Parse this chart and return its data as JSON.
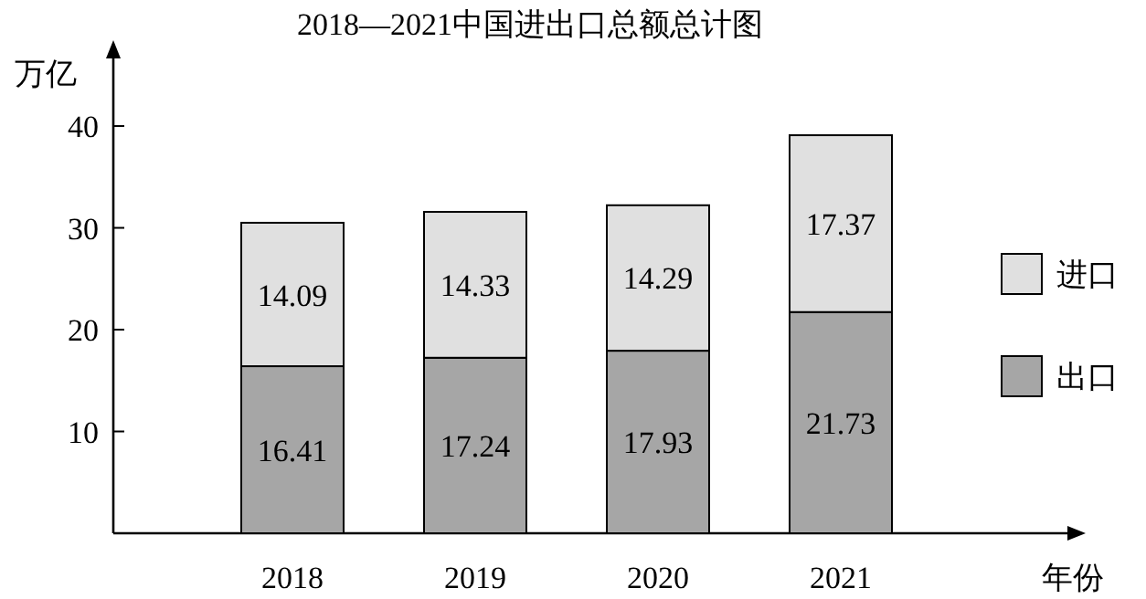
{
  "chart_data": {
    "type": "bar",
    "title": "2018—2021中国进出口总额总计图",
    "xlabel": "年份",
    "ylabel": "万亿",
    "categories": [
      "2018",
      "2019",
      "2020",
      "2021"
    ],
    "stacked": true,
    "series": [
      {
        "name": "出口",
        "color": "#a6a6a6",
        "values": [
          16.41,
          17.24,
          17.93,
          21.73
        ]
      },
      {
        "name": "进口",
        "color": "#e0e0e0",
        "values": [
          14.09,
          14.33,
          14.29,
          17.37
        ]
      }
    ],
    "ylim": [
      0,
      47
    ],
    "yticks": [
      10,
      20,
      30,
      40
    ],
    "data_labels": true,
    "legend": "right"
  }
}
